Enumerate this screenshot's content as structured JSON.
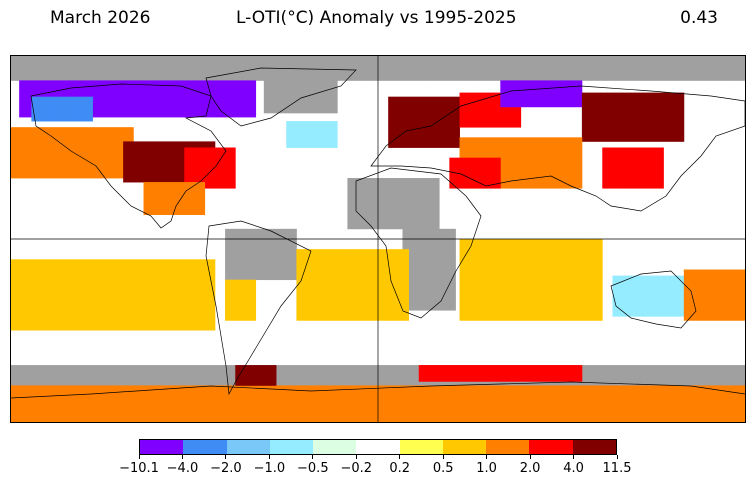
{
  "header": {
    "date": "March 2026",
    "title": "L-OTI(°C) Anomaly vs 1995-2025",
    "global_mean": "0.43"
  },
  "map": {
    "projection": "equirectangular",
    "lon_range": [
      -180,
      180
    ],
    "lat_range": [
      -90,
      90
    ],
    "cell_size_deg": 4,
    "missing_color": "#a0a0a0",
    "regions": [
      {
        "name": "arctic-missing",
        "lon": [
          -180,
          180
        ],
        "lat": [
          78,
          90
        ],
        "v": null
      },
      {
        "name": "canada-north-purple",
        "lon": [
          -176,
          -60
        ],
        "lat": [
          60,
          78
        ],
        "v": -5
      },
      {
        "name": "alaska-blue",
        "lon": [
          -170,
          -140
        ],
        "lat": [
          58,
          70
        ],
        "v": -3
      },
      {
        "name": "greenland-missing",
        "lon": [
          -56,
          -20
        ],
        "lat": [
          62,
          82
        ],
        "v": null
      },
      {
        "name": "north-pacific-orange",
        "lon": [
          -180,
          -120
        ],
        "lat": [
          30,
          55
        ],
        "v": 1.3
      },
      {
        "name": "us-darkred",
        "lon": [
          -125,
          -80
        ],
        "lat": [
          28,
          48
        ],
        "v": 5
      },
      {
        "name": "us-red",
        "lon": [
          -95,
          -70
        ],
        "lat": [
          25,
          45
        ],
        "v": 2.5
      },
      {
        "name": "mexico-orange",
        "lon": [
          -115,
          -85
        ],
        "lat": [
          12,
          28
        ],
        "v": 1.2
      },
      {
        "name": "north-atlantic-white",
        "lon": [
          -60,
          -10
        ],
        "lat": [
          30,
          58
        ],
        "v": 0
      },
      {
        "name": "north-atlantic-cyan",
        "lon": [
          -45,
          -20
        ],
        "lat": [
          45,
          58
        ],
        "v": -0.7
      },
      {
        "name": "europe-darkred",
        "lon": [
          5,
          40
        ],
        "lat": [
          45,
          70
        ],
        "v": 5
      },
      {
        "name": "scandinavia-red",
        "lon": [
          40,
          70
        ],
        "lat": [
          55,
          72
        ],
        "v": 3
      },
      {
        "name": "siberia-purple",
        "lon": [
          60,
          100
        ],
        "lat": [
          65,
          78
        ],
        "v": -5
      },
      {
        "name": "asia-darkred",
        "lon": [
          100,
          150
        ],
        "lat": [
          48,
          72
        ],
        "v": 5
      },
      {
        "name": "central-asia-orange",
        "lon": [
          40,
          100
        ],
        "lat": [
          25,
          50
        ],
        "v": 1.3
      },
      {
        "name": "middle-east-red",
        "lon": [
          35,
          60
        ],
        "lat": [
          25,
          40
        ],
        "v": 2.5
      },
      {
        "name": "east-asia-red",
        "lon": [
          110,
          140
        ],
        "lat": [
          25,
          45
        ],
        "v": 2.5
      },
      {
        "name": "sahara-missing",
        "lon": [
          -15,
          30
        ],
        "lat": [
          5,
          30
        ],
        "v": null
      },
      {
        "name": "africa-south-missing",
        "lon": [
          12,
          38
        ],
        "lat": [
          -35,
          5
        ],
        "v": null
      },
      {
        "name": "amazon-missing",
        "lon": [
          -75,
          -40
        ],
        "lat": [
          -20,
          5
        ],
        "v": null
      },
      {
        "name": "andes-yellow",
        "lon": [
          -75,
          -60
        ],
        "lat": [
          -40,
          -20
        ],
        "v": 0.7
      },
      {
        "name": "south-atlantic-yellow",
        "lon": [
          -40,
          15
        ],
        "lat": [
          -40,
          -5
        ],
        "v": 0.8
      },
      {
        "name": "equatorial-pacific-white",
        "lon": [
          -180,
          -80
        ],
        "lat": [
          -10,
          10
        ],
        "v": 0
      },
      {
        "name": "south-pacific-yellow",
        "lon": [
          -180,
          -80
        ],
        "lat": [
          -50,
          -10
        ],
        "v": 0.7
      },
      {
        "name": "indian-ocean-yellow",
        "lon": [
          40,
          110
        ],
        "lat": [
          -40,
          0
        ],
        "v": 0.8
      },
      {
        "name": "australia-cyan",
        "lon": [
          115,
          150
        ],
        "lat": [
          -38,
          -18
        ],
        "v": -0.7
      },
      {
        "name": "sw-pacific-orange",
        "lon": [
          150,
          180
        ],
        "lat": [
          -40,
          -15
        ],
        "v": 1.2
      },
      {
        "name": "southern-ocean-white",
        "lon": [
          -180,
          180
        ],
        "lat": [
          -62,
          -45
        ],
        "v": 0
      },
      {
        "name": "antarctic-coast-missing",
        "lon": [
          -180,
          180
        ],
        "lat": [
          -72,
          -62
        ],
        "v": null
      },
      {
        "name": "antarctica-orange",
        "lon": [
          -180,
          180
        ],
        "lat": [
          -90,
          -72
        ],
        "v": 1.5
      },
      {
        "name": "antarctic-peninsula-darkred",
        "lon": [
          -70,
          -50
        ],
        "lat": [
          -72,
          -62
        ],
        "v": 5
      },
      {
        "name": "weddell-red",
        "lon": [
          20,
          100
        ],
        "lat": [
          -70,
          -62
        ],
        "v": 3
      }
    ]
  },
  "colorbar": {
    "bounds": [
      "−10.1",
      "−4.0",
      "−2.0",
      "−1.0",
      "−0.5",
      "−0.2",
      "0.2",
      "0.5",
      "1.0",
      "2.0",
      "4.0",
      "11.5"
    ],
    "bound_values": [
      -10.1,
      -4.0,
      -2.0,
      -1.0,
      -0.5,
      -0.2,
      0.2,
      0.5,
      1.0,
      2.0,
      4.0,
      11.5
    ],
    "colors": [
      "#8000ff",
      "#3f8cf5",
      "#7ac8f8",
      "#96ecff",
      "#dcffe4",
      "#ffffff",
      "#ffff50",
      "#ffc800",
      "#ff8000",
      "#ff0000",
      "#800000"
    ]
  }
}
